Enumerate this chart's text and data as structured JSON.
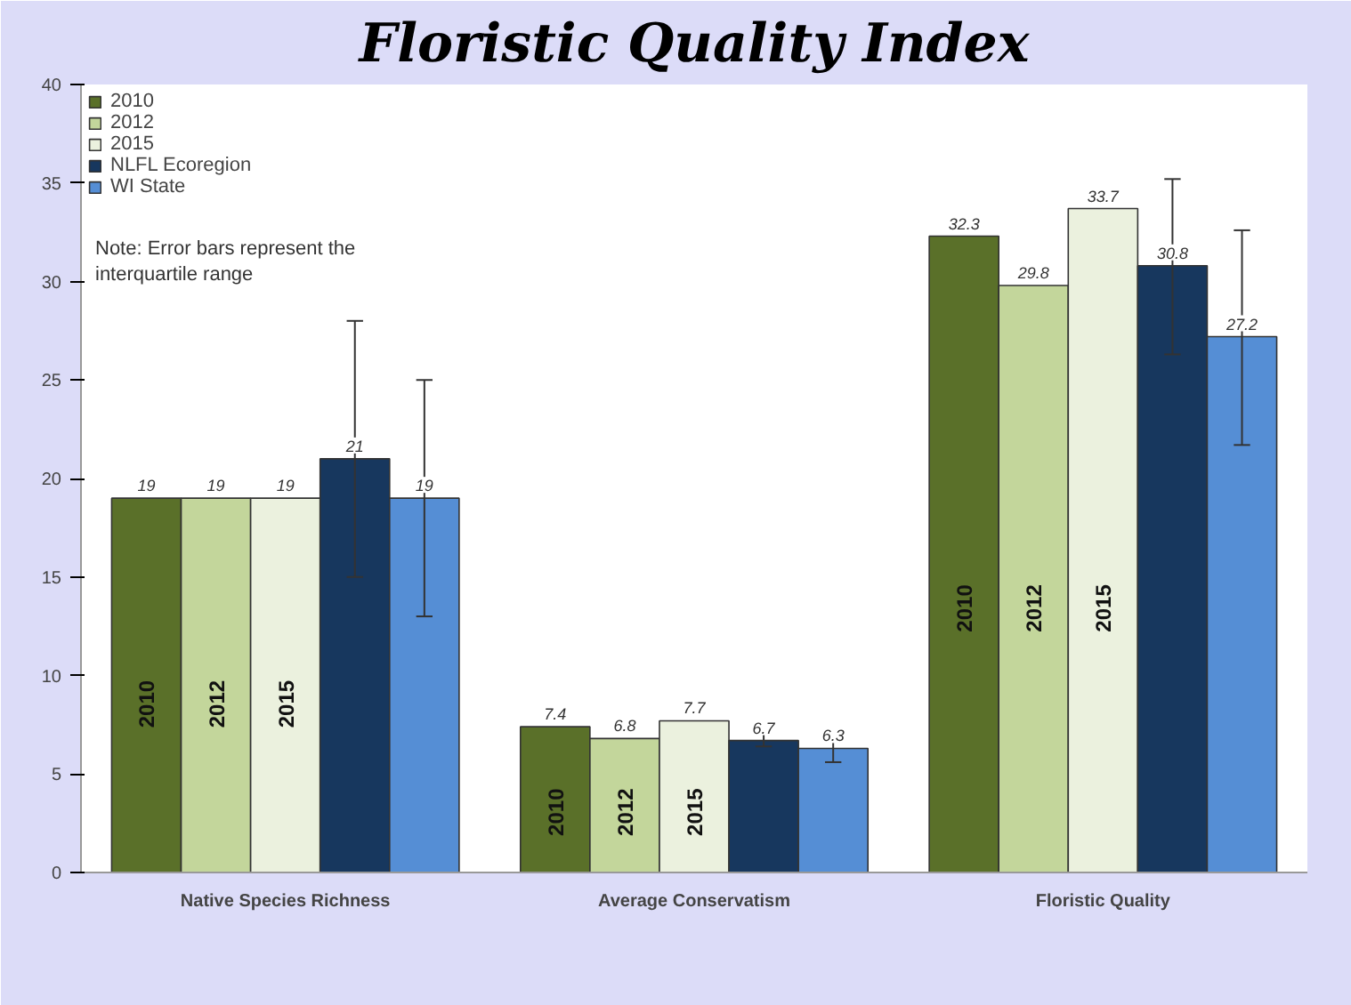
{
  "chart_data": {
    "type": "bar",
    "title": "Floristic Quality Index",
    "categories": [
      "Native Species Richness",
      "Average Conservatism",
      "Floristic Quality"
    ],
    "series": [
      {
        "name": "2010",
        "color": "#5a7029",
        "values": [
          19,
          7.4,
          32.3
        ]
      },
      {
        "name": "2012",
        "color": "#c3d69b",
        "values": [
          19,
          6.8,
          29.8
        ]
      },
      {
        "name": "2015",
        "color": "#ebf1de",
        "values": [
          19,
          7.7,
          33.7
        ]
      },
      {
        "name": "NLFL Ecoregion",
        "color": "#17375e",
        "values": [
          21,
          6.7,
          30.8
        ],
        "errors": [
          [
            15,
            28
          ],
          [
            6.4,
            7.1
          ],
          [
            26.3,
            35.2
          ]
        ]
      },
      {
        "name": "WI State",
        "color": "#558ed5",
        "values": [
          19,
          6.3,
          27.2
        ],
        "errors": [
          [
            13,
            25
          ],
          [
            5.6,
            6.8
          ],
          [
            21.7,
            32.6
          ]
        ]
      }
    ],
    "ylim": [
      0,
      40
    ],
    "yticks": [
      0,
      5,
      10,
      15,
      20,
      25,
      30,
      35,
      40
    ],
    "grid": false,
    "legend": "top left",
    "data_labels": true,
    "annotations": [
      "Note: Error bars represent the\ninterquartile range",
      "2010",
      "2012",
      "2015",
      "2010",
      "2012",
      "2015",
      "2010",
      "2012",
      "2015"
    ]
  }
}
